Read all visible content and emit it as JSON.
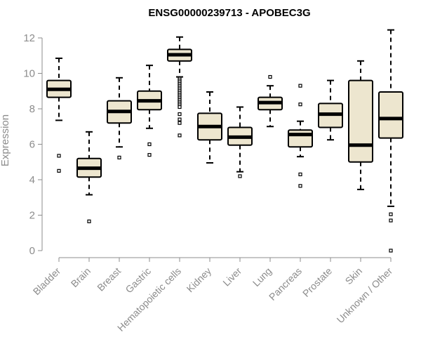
{
  "chart_data": {
    "type": "boxplot",
    "title": "ENSG00000239713 - APOBEC3G",
    "xlabel": "",
    "ylabel": "Expression",
    "ylim": [
      0,
      12
    ],
    "yticks": [
      0,
      2,
      4,
      6,
      8,
      10,
      12
    ],
    "grid": false,
    "box_fill": "#ede6cf",
    "categories": [
      "Bladder",
      "Brain",
      "Breast",
      "Gastric",
      "Hematopoietic cells",
      "Kidney",
      "Liver",
      "Lung",
      "Pancreas",
      "Prostate",
      "Skin",
      "Unknown / Other"
    ],
    "boxes": [
      {
        "min": 7.35,
        "q1": 8.65,
        "median": 9.1,
        "q3": 9.6,
        "max": 10.85,
        "outliers": [
          5.35,
          4.5
        ]
      },
      {
        "min": 3.15,
        "q1": 4.15,
        "median": 4.65,
        "q3": 5.2,
        "max": 6.7,
        "outliers": [
          1.65
        ]
      },
      {
        "min": 5.85,
        "q1": 7.2,
        "median": 7.85,
        "q3": 8.45,
        "max": 9.75,
        "outliers": [
          5.25
        ]
      },
      {
        "min": 6.9,
        "q1": 7.95,
        "median": 8.45,
        "q3": 9.0,
        "max": 10.45,
        "outliers": [
          6.0,
          5.4
        ]
      },
      {
        "min": 9.8,
        "q1": 10.7,
        "median": 11.05,
        "q3": 11.35,
        "max": 12.05,
        "outliers": [
          9.7,
          9.6,
          9.5,
          9.4,
          9.3,
          9.2,
          9.1,
          9.0,
          8.9,
          8.8,
          8.7,
          8.6,
          8.5,
          8.4,
          8.3,
          8.2,
          8.1,
          7.7,
          7.4,
          7.2,
          6.5
        ]
      },
      {
        "min": 4.95,
        "q1": 6.25,
        "median": 7.0,
        "q3": 7.75,
        "max": 8.95,
        "outliers": []
      },
      {
        "min": 4.45,
        "q1": 5.95,
        "median": 6.4,
        "q3": 6.95,
        "max": 8.1,
        "outliers": [
          4.2
        ]
      },
      {
        "min": 7.0,
        "q1": 7.95,
        "median": 8.35,
        "q3": 8.65,
        "max": 9.3,
        "outliers": [
          9.8
        ]
      },
      {
        "min": 5.3,
        "q1": 5.85,
        "median": 6.55,
        "q3": 6.8,
        "max": 7.3,
        "outliers": [
          9.3,
          8.25,
          4.3,
          3.65
        ]
      },
      {
        "min": 6.25,
        "q1": 6.95,
        "median": 7.7,
        "q3": 8.3,
        "max": 9.6,
        "outliers": []
      },
      {
        "min": 3.45,
        "q1": 5.0,
        "median": 5.95,
        "q3": 9.6,
        "max": 10.7,
        "outliers": []
      },
      {
        "min": 2.5,
        "q1": 6.35,
        "median": 7.45,
        "q3": 8.95,
        "max": 12.45,
        "outliers": [
          2.05,
          1.7,
          0.0
        ]
      }
    ]
  }
}
